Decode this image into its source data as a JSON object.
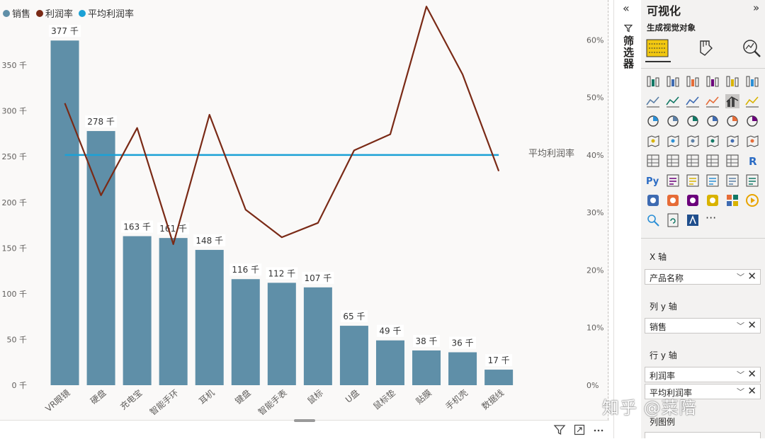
{
  "chart_data": {
    "type": "bar+line",
    "legend": [
      {
        "name": "销售",
        "color": "#5f8fa8"
      },
      {
        "name": "利润率",
        "color": "#7a2a16"
      },
      {
        "name": "平均利润率",
        "color": "#1ba1d6"
      }
    ],
    "categories": [
      "VR眼镜",
      "硬盘",
      "充电宝",
      "智能手环",
      "耳机",
      "键盘",
      "智能手表",
      "鼠标",
      "U盘",
      "鼠标垫",
      "贴膜",
      "手机壳",
      "数据线"
    ],
    "series": [
      {
        "name": "销售",
        "type": "bar",
        "axis": "left",
        "values": [
          377000,
          278000,
          163000,
          161000,
          148000,
          116000,
          112000,
          107000,
          65000,
          49000,
          38000,
          36000,
          17000
        ]
      },
      {
        "name": "利润率",
        "type": "line",
        "axis": "right",
        "values": [
          0.49,
          0.33,
          0.447,
          0.245,
          0.47,
          0.305,
          0.257,
          0.282,
          0.408,
          0.436,
          0.658,
          0.54,
          0.372
        ]
      },
      {
        "name": "平均利润率",
        "type": "line",
        "axis": "right",
        "values": [
          0.4,
          0.4,
          0.4,
          0.4,
          0.4,
          0.4,
          0.4,
          0.4,
          0.4,
          0.4,
          0.4,
          0.4,
          0.4
        ]
      }
    ],
    "data_labels": [
      "377 千",
      "278 千",
      "163 千",
      "161 千",
      "148 千",
      "116 千",
      "112 千",
      "107 千",
      "65 千",
      "49 千",
      "38 千",
      "36 千",
      "17 千"
    ],
    "y_left_ticks": [
      "0 千",
      "50 千",
      "100 千",
      "150 千",
      "200 千",
      "250 千",
      "300 千",
      "350 千"
    ],
    "y_left_tick_values": [
      0,
      50000,
      100000,
      150000,
      200000,
      250000,
      300000,
      350000
    ],
    "ylim_left": [
      0,
      395000
    ],
    "y_right_ticks": [
      "0%",
      "10%",
      "20%",
      "30%",
      "40%",
      "50%",
      "60%"
    ],
    "y_right_tick_values": [
      0,
      0.1,
      0.2,
      0.3,
      0.4,
      0.5,
      0.6
    ],
    "ylim_right": [
      0,
      0.6275
    ],
    "avg_line_label": "平均利润率",
    "grid": false
  },
  "filter_pane": {
    "collapse_icon": "double-chevron-left-icon",
    "label": "筛选器"
  },
  "viz_pane": {
    "title": "可视化",
    "subtitle": "生成视觉对象",
    "wells": [
      {
        "label": "X 轴",
        "fields": [
          "产品名称"
        ]
      },
      {
        "label": "列 y 轴",
        "fields": [
          "销售"
        ]
      },
      {
        "label": "行 y 轴",
        "fields": [
          "利润率",
          "平均利润率"
        ]
      },
      {
        "label": "列图例",
        "fields": []
      }
    ],
    "more_label": "···"
  },
  "watermark": "知乎 @菜陪"
}
